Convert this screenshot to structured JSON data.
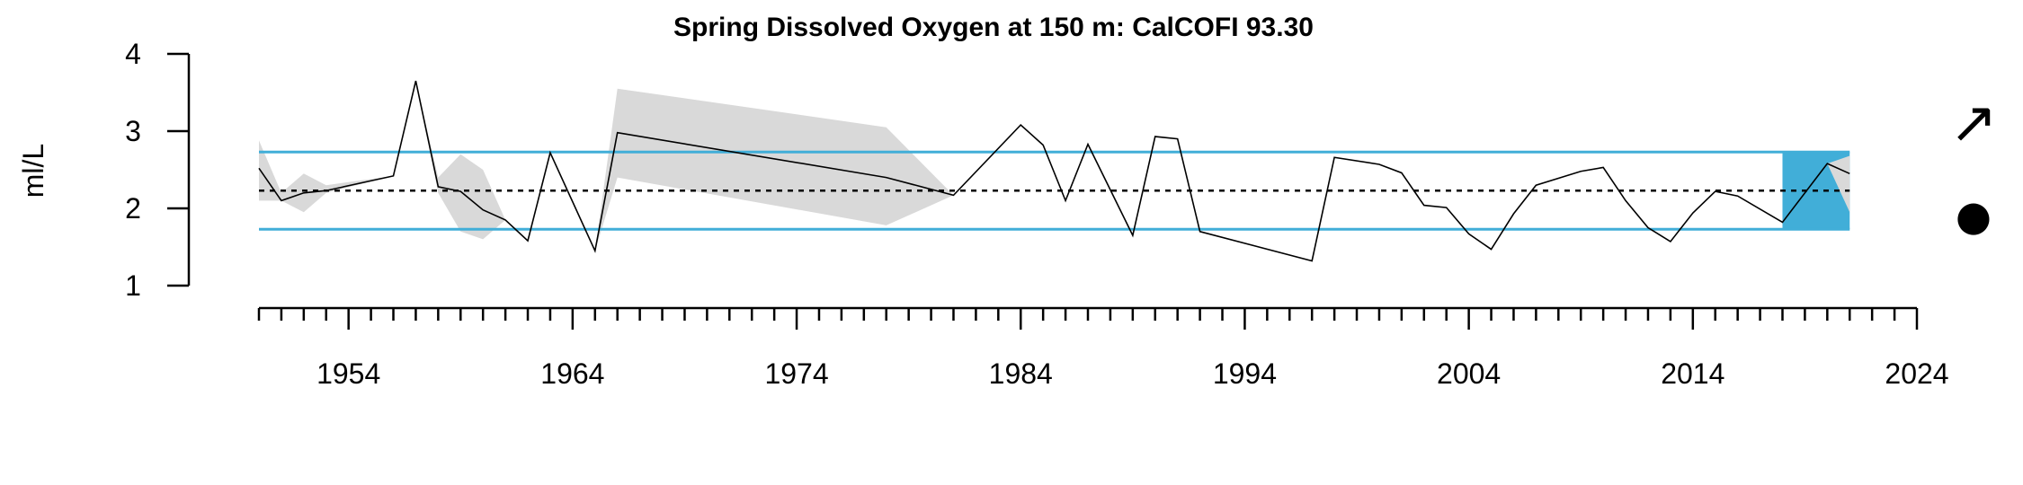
{
  "chart_data": {
    "type": "line",
    "title": "Spring Dissolved Oxygen at 150 m: CalCOFI 93.30",
    "ylabel": "ml/L",
    "xlabel": "",
    "xlim": [
      1950,
      2024
    ],
    "ylim": [
      1,
      4
    ],
    "y_ticks": [
      1,
      2,
      3,
      4
    ],
    "x_tick_labels": [
      1954,
      1964,
      1974,
      1984,
      1994,
      2004,
      2014,
      2024
    ],
    "x_minor_ticks_every": 1,
    "mean": 2.23,
    "sd_upper": 2.73,
    "sd_lower": 1.73,
    "recent_window": [
      2018,
      2021
    ],
    "grid": false,
    "legend": "none",
    "trend_symbol": "↗",
    "mean_symbol": "●",
    "colors": {
      "reference": "#41aed8",
      "uncertainty": "#d9d9d9",
      "series": "#000000"
    },
    "series": [
      {
        "x": [
          1950,
          1951,
          1952,
          1953,
          1956,
          1957,
          1958,
          1959,
          1960,
          1961,
          1962,
          1963,
          1965,
          1966,
          1978,
          1981,
          1984,
          1985,
          1986,
          1987,
          1989,
          1990,
          1991,
          1992,
          1997,
          1998,
          2000,
          2001,
          2002,
          2003,
          2004,
          2005,
          2006,
          2007,
          2009,
          2010,
          2011,
          2012,
          2013,
          2014,
          2015,
          2016,
          2018,
          2020,
          2021
        ],
        "y": [
          2.52,
          2.1,
          2.2,
          2.23,
          2.42,
          3.65,
          2.28,
          2.22,
          1.98,
          1.85,
          1.58,
          2.72,
          1.45,
          2.98,
          2.4,
          2.17,
          3.08,
          2.82,
          2.1,
          2.83,
          1.65,
          2.93,
          2.9,
          1.7,
          1.32,
          2.66,
          2.57,
          2.46,
          2.04,
          2.01,
          1.67,
          1.47,
          1.93,
          2.3,
          2.48,
          2.53,
          2.1,
          1.75,
          1.57,
          1.94,
          2.22,
          2.16,
          1.82,
          2.58,
          2.45
        ],
        "band_upper": [
          2.88,
          2.2,
          2.45,
          2.3,
          2.42,
          3.65,
          2.4,
          2.7,
          2.5,
          1.85,
          1.58,
          2.72,
          1.45,
          3.55,
          3.05,
          2.17,
          3.08,
          2.82,
          2.1,
          2.83,
          1.65,
          2.93,
          2.9,
          1.7,
          1.32,
          2.66,
          2.57,
          2.46,
          2.04,
          2.01,
          1.67,
          1.47,
          1.93,
          2.3,
          2.48,
          2.53,
          2.1,
          1.75,
          1.57,
          1.94,
          2.22,
          2.16,
          1.82,
          2.58,
          2.68
        ],
        "band_lower": [
          2.1,
          2.1,
          1.95,
          2.2,
          2.42,
          3.65,
          2.2,
          1.7,
          1.6,
          1.85,
          1.58,
          2.72,
          1.45,
          2.4,
          1.78,
          2.17,
          3.08,
          2.82,
          2.1,
          2.83,
          1.65,
          2.93,
          2.9,
          1.7,
          1.32,
          2.66,
          2.57,
          2.46,
          2.04,
          2.01,
          1.67,
          1.47,
          1.93,
          2.3,
          2.48,
          2.53,
          2.1,
          1.75,
          1.57,
          1.94,
          2.22,
          2.16,
          1.82,
          2.58,
          1.95
        ]
      }
    ]
  }
}
